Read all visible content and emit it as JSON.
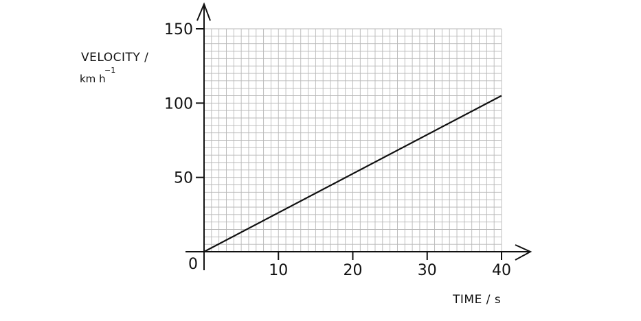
{
  "chart_data": {
    "type": "line",
    "title": "",
    "xlabel": "TIME / s",
    "ylabel_line1": "VELOCITY /",
    "ylabel_unit_base": "km h",
    "ylabel_unit_exp": "−1",
    "origin_label": "0",
    "xlim": [
      0,
      40
    ],
    "ylim": [
      0,
      150
    ],
    "x_ticks": [
      10,
      20,
      30,
      40
    ],
    "y_ticks": [
      50,
      100,
      150
    ],
    "grid": true,
    "grid_minor_x": 1,
    "grid_minor_y": 5,
    "series": [
      {
        "x": [
          0,
          40
        ],
        "y": [
          0,
          105
        ]
      }
    ]
  },
  "colors": {
    "line": "#111111",
    "grid": "#b8b8b8",
    "axis": "#111111"
  }
}
